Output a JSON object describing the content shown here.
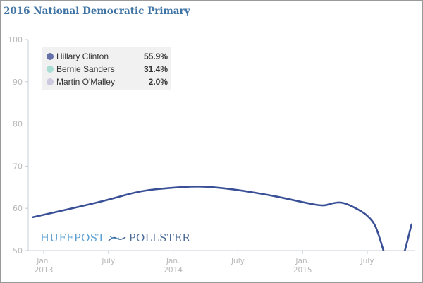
{
  "title": "2016 National Democratic Primary",
  "legend": [
    {
      "name": "Hillary Clinton",
      "value": "55.9%",
      "color": "#6371a8"
    },
    {
      "name": "Bernie Sanders",
      "value": "31.4%",
      "color": "#a8ddd3"
    },
    {
      "name": "Martin O'Malley",
      "value": "2.0%",
      "color": "#cdc9e0"
    }
  ],
  "logo": {
    "left": "HUFFPOST",
    "right": "POLLSTER"
  },
  "chart_data": {
    "type": "line",
    "title": "2016 National Democratic Primary",
    "xlabel": "",
    "ylabel": "",
    "ylim": [
      50,
      100
    ],
    "yticks": [
      50,
      60,
      70,
      80,
      90,
      100
    ],
    "xticks": [
      {
        "month": 0,
        "label": [
          "Jan.",
          "2013"
        ]
      },
      {
        "month": 6,
        "label": [
          "July",
          ""
        ]
      },
      {
        "month": 12,
        "label": [
          "Jan.",
          "2014"
        ]
      },
      {
        "month": 18,
        "label": [
          "July",
          ""
        ]
      },
      {
        "month": 24,
        "label": [
          "Jan.",
          "2015"
        ]
      },
      {
        "month": 30,
        "label": [
          "July",
          ""
        ]
      }
    ],
    "x_unit": "months since Jan. 2013",
    "xlim": [
      -1.0,
      34.4
    ],
    "grid": false,
    "legend_position": "top-left",
    "series": [
      {
        "name": "Hillary Clinton",
        "color": "#3a5096",
        "points": [
          [
            -1.0,
            57.9
          ],
          [
            2.5,
            59.9
          ],
          [
            6.0,
            62.0
          ],
          [
            9.0,
            64.2
          ],
          [
            12.0,
            64.9
          ],
          [
            13.9,
            65.2
          ],
          [
            15.5,
            65.1
          ],
          [
            17.9,
            64.4
          ],
          [
            20.8,
            63.2
          ],
          [
            22.7,
            62.2
          ],
          [
            24.1,
            61.4
          ],
          [
            25.9,
            60.5
          ],
          [
            26.7,
            61.2
          ],
          [
            27.6,
            61.5
          ],
          [
            28.6,
            60.5
          ],
          [
            29.5,
            59.2
          ],
          [
            29.9,
            58.5
          ],
          [
            30.6,
            56.7
          ],
          [
            31.0,
            54.2
          ],
          [
            31.5,
            50.0
          ],
          [
            32.0,
            46.0
          ],
          [
            33.0,
            46.0
          ],
          [
            33.5,
            50.0
          ],
          [
            34.1,
            56.2
          ]
        ]
      }
    ]
  }
}
